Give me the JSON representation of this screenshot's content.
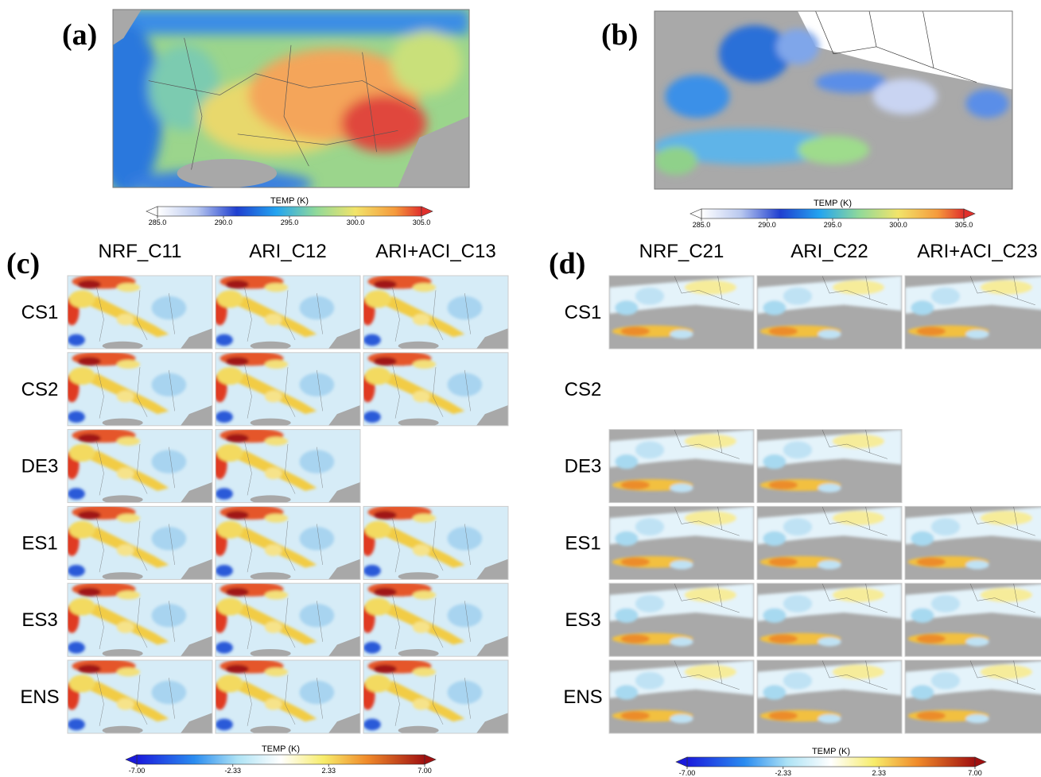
{
  "panels": {
    "a": {
      "label": "(a)",
      "colorbar": {
        "title": "TEMP (K)",
        "lim": [
          285,
          305
        ],
        "ticks": [
          {
            "value": 285,
            "label": "285.0"
          },
          {
            "value": 290,
            "label": "290.0"
          },
          {
            "value": 295,
            "label": "295.0"
          },
          {
            "value": 300,
            "label": "300.0"
          },
          {
            "value": 305,
            "label": "305.0"
          }
        ]
      }
    },
    "b": {
      "label": "(b)",
      "colorbar": {
        "title": "TEMP (K)",
        "lim": [
          285,
          305
        ],
        "ticks": [
          {
            "value": 285,
            "label": "285.0"
          },
          {
            "value": 290,
            "label": "290.0"
          },
          {
            "value": 295,
            "label": "295.0"
          },
          {
            "value": 300,
            "label": "300.0"
          },
          {
            "value": 305,
            "label": "305.0"
          }
        ]
      }
    },
    "c": {
      "label": "(c)",
      "columns": [
        "NRF_C11",
        "ARI_C12",
        "ARI+ACI_C13"
      ],
      "rows": [
        "CS1",
        "CS2",
        "DE3",
        "ES1",
        "ES3",
        "ENS"
      ],
      "colorbar": {
        "title": "TEMP (K)",
        "lim": [
          -7,
          7
        ],
        "ticks": [
          {
            "value": -7,
            "label": "-7.00"
          },
          {
            "value": -2.33,
            "label": "-2.33"
          },
          {
            "value": 2.33,
            "label": "2.33"
          },
          {
            "value": 7,
            "label": "7.00"
          }
        ]
      }
    },
    "d": {
      "label": "(d)",
      "columns": [
        "NRF_C21",
        "ARI_C22",
        "ARI+ACI_C23"
      ],
      "rows": [
        "CS1",
        "CS2",
        "DE3",
        "ES1",
        "ES3",
        "ENS"
      ],
      "colorbar": {
        "title": "TEMP (K)",
        "lim": [
          -7,
          7
        ],
        "ticks": [
          {
            "value": -7,
            "label": "-7.00"
          },
          {
            "value": -2.33,
            "label": "-2.33"
          },
          {
            "value": 2.33,
            "label": "2.33"
          },
          {
            "value": 7,
            "label": "7.00"
          }
        ]
      }
    }
  }
}
